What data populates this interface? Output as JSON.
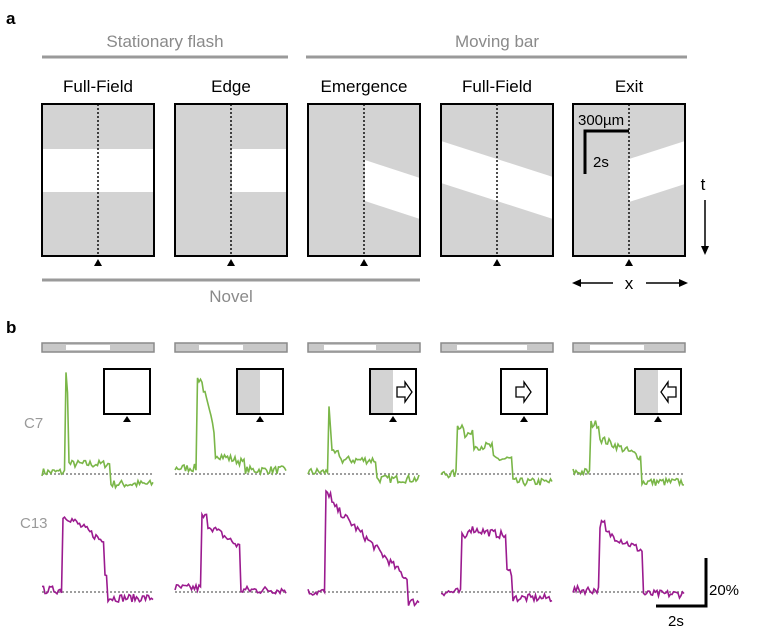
{
  "panel_a": {
    "label": "a",
    "group_stationary": "Stationary flash",
    "group_moving": "Moving bar",
    "group_novel": "Novel",
    "columns": [
      "Full-Field",
      "Edge",
      "Emergence",
      "Full-Field",
      "Exit"
    ],
    "scale_space": "300µm",
    "scale_time": "2s",
    "axis_t": "t",
    "axis_x": "x"
  },
  "panel_b": {
    "label": "b",
    "cell_1": "C7",
    "cell_2": "C13",
    "scale_amplitude": "20%",
    "scale_time": "2s"
  },
  "colors": {
    "c7": "#7ab648",
    "c13": "#9b1b8f",
    "stimulus_gray": "#d3d3d3",
    "group_line": "#9a9a9a"
  },
  "icons": [
    "arrow-right-icon",
    "arrow-right-icon",
    "arrow-left-icon"
  ]
}
